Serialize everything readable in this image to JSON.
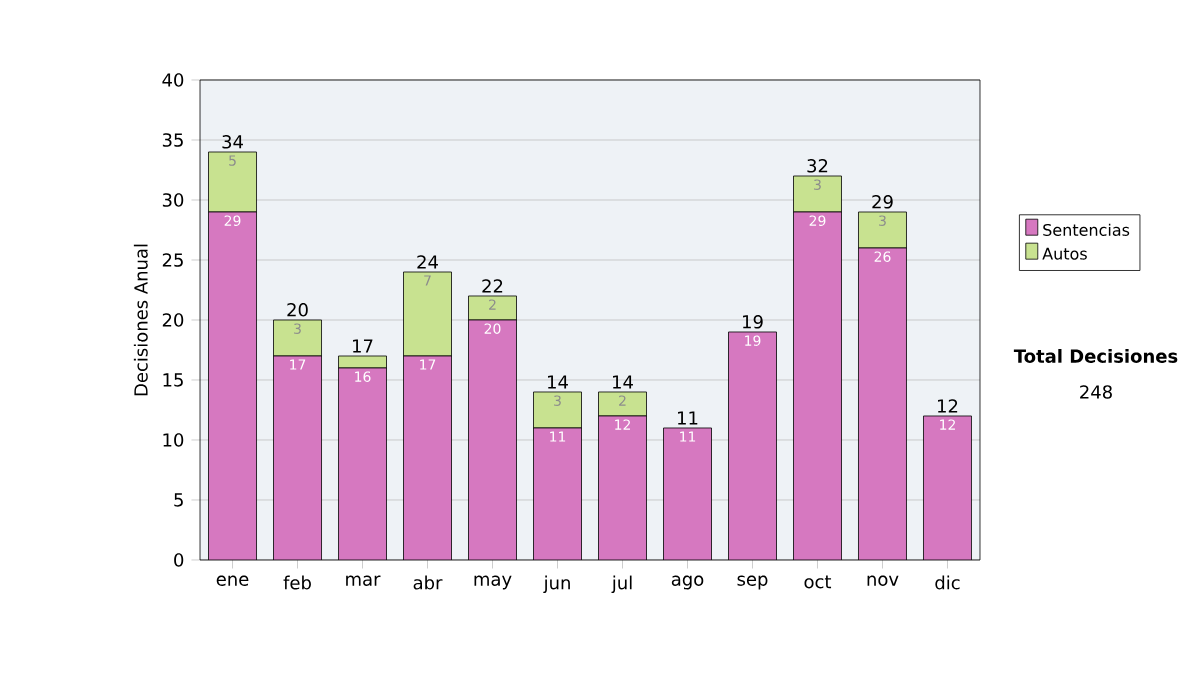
{
  "chart_data": {
    "type": "bar",
    "stacked": true,
    "ylabel": "Decisiones Anual",
    "categories": [
      "ene",
      "feb",
      "mar",
      "abr",
      "may",
      "jun",
      "jul",
      "ago",
      "sep",
      "oct",
      "nov",
      "dic"
    ],
    "series": [
      {
        "name": "Sentencias",
        "color": "#d678c0",
        "values": [
          29,
          17,
          16,
          17,
          20,
          11,
          12,
          11,
          19,
          29,
          26,
          12
        ],
        "value_labels": [
          "29",
          "17",
          "16",
          "17",
          "20",
          "11",
          "12",
          "11",
          "19",
          "29",
          "26",
          "12"
        ]
      },
      {
        "name": "Autos",
        "color": "#c8e290",
        "values": [
          5,
          3,
          1,
          7,
          2,
          3,
          2,
          0,
          0,
          3,
          3,
          0
        ],
        "value_labels": [
          "5",
          "3",
          null,
          "7",
          "2",
          "3",
          "2",
          null,
          null,
          "3",
          "3",
          null
        ]
      }
    ],
    "totals": [
      "34",
      "20",
      "17",
      "24",
      "22",
      "14",
      "14",
      "11",
      "19",
      "32",
      "29",
      "12"
    ],
    "ylim": [
      0,
      40
    ],
    "yticks": [
      0,
      5,
      10,
      15,
      20,
      25,
      30,
      35,
      40
    ],
    "grid": "y",
    "legend": "right",
    "annotations": [
      "Total Decisiones",
      "248"
    ]
  }
}
